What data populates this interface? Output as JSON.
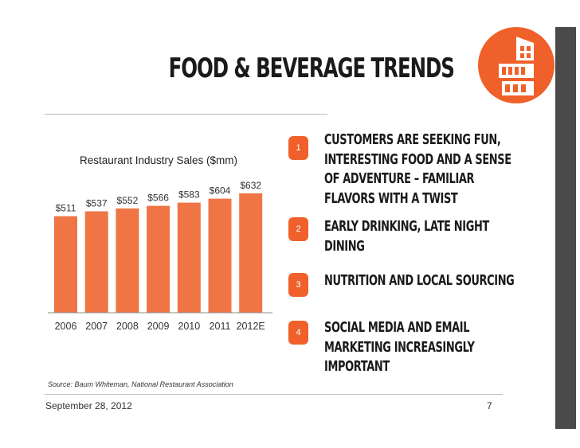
{
  "slide": {
    "title": "FOOD & BEVERAGE TRENDS",
    "source": "Source: Baum Whiteman, National Restaurant Association",
    "date": "September 28, 2012",
    "page": "7"
  },
  "colors": {
    "accent": "#f0602a",
    "bar": "#f07545",
    "dark": "#4a4a4a",
    "text": "#1a1a1a"
  },
  "points": [
    {
      "num": "1",
      "text": "CUSTOMERS ARE SEEKING FUN, INTERESTING FOOD AND A SENSE OF ADVENTURE – FAMILIAR FLAVORS WITH A TWIST"
    },
    {
      "num": "2",
      "text": "EARLY DRINKING, LATE NIGHT DINING"
    },
    {
      "num": "3",
      "text": "NUTRITION AND LOCAL SOURCING"
    },
    {
      "num": "4",
      "text": "SOCIAL MEDIA AND EMAIL MARKETING INCREASINGLY IMPORTANT"
    }
  ],
  "chart_data": {
    "type": "bar",
    "title": "Restaurant Industry Sales ($mm)",
    "categories": [
      "2006",
      "2007",
      "2008",
      "2009",
      "2010",
      "2011",
      "2012E"
    ],
    "values": [
      511,
      537,
      552,
      566,
      583,
      604,
      632
    ],
    "value_labels": [
      "$511",
      "$537",
      "$552",
      "$566",
      "$583",
      "$604",
      "$632"
    ],
    "xlabel": "",
    "ylabel": "",
    "ylim": [
      0,
      632
    ],
    "grid": false,
    "legend": "none"
  }
}
